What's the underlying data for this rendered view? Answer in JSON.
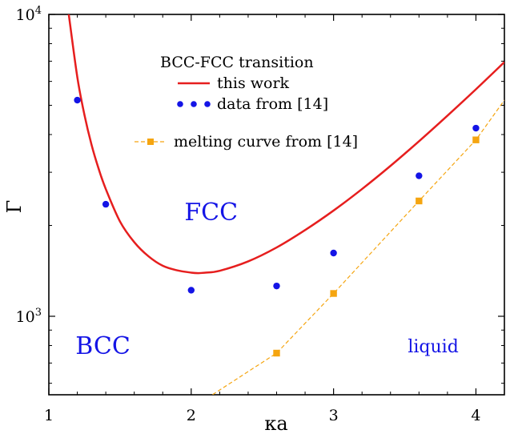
{
  "chart_data": {
    "type": "scatter",
    "xlabel": "κa",
    "ylabel": "Γ",
    "xlim": [
      1,
      4.2
    ],
    "ylim_log10": [
      2.74,
      4.0
    ],
    "y_scale": "log",
    "x_ticks": [
      "1",
      "2",
      "3",
      "4"
    ],
    "y_ticks": [
      {
        "value": 1000,
        "base": "10",
        "exp": "3"
      },
      {
        "value": 10000,
        "base": "10",
        "exp": "4"
      }
    ],
    "legend": {
      "title": "BCC-FCC transition",
      "placement": "top-center",
      "entries": [
        "this work",
        "data from [14]",
        "melting curve from [14]"
      ]
    },
    "series": [
      {
        "name": "this work",
        "kind": "line",
        "color": "#e61e1e",
        "x": [
          1.14,
          1.2,
          1.25,
          1.3,
          1.35,
          1.4,
          1.5,
          1.6,
          1.7,
          1.8,
          1.9,
          2.0,
          2.05,
          2.1,
          2.2,
          2.4,
          2.6,
          2.8,
          3.0,
          3.2,
          3.4,
          3.6,
          3.8,
          4.0,
          4.2
        ],
        "y": [
          10000,
          6200,
          4650,
          3700,
          3080,
          2640,
          2060,
          1760,
          1580,
          1470,
          1420,
          1395,
          1390,
          1395,
          1415,
          1520,
          1690,
          1930,
          2240,
          2640,
          3150,
          3800,
          4620,
          5650,
          6950
        ]
      },
      {
        "name": "data from [14]",
        "kind": "scatter",
        "color": "#1414e6",
        "x": [
          1.2,
          1.4,
          2.0,
          2.6,
          3.0,
          3.6,
          4.0
        ],
        "y": [
          5200,
          2350,
          1220,
          1260,
          1620,
          2920,
          4200
        ]
      },
      {
        "name": "melting curve from [14]",
        "kind": "line-markers",
        "color": "#f5a510",
        "x": [
          2.15,
          2.6,
          3.0,
          3.6,
          4.0,
          4.2
        ],
        "y": [
          550,
          755,
          1190,
          2410,
          3840,
          5200
        ],
        "marker_x": [
          2.6,
          3.0,
          3.6,
          4.0
        ],
        "marker_y": [
          755,
          1190,
          2410,
          3840
        ]
      }
    ],
    "annotations": [
      {
        "text": "FCC",
        "x": 2.14,
        "y": 2080
      },
      {
        "text": "BCC",
        "x": 1.38,
        "y": 750
      },
      {
        "text": "liquid",
        "x": 3.7,
        "y": 760
      }
    ]
  }
}
